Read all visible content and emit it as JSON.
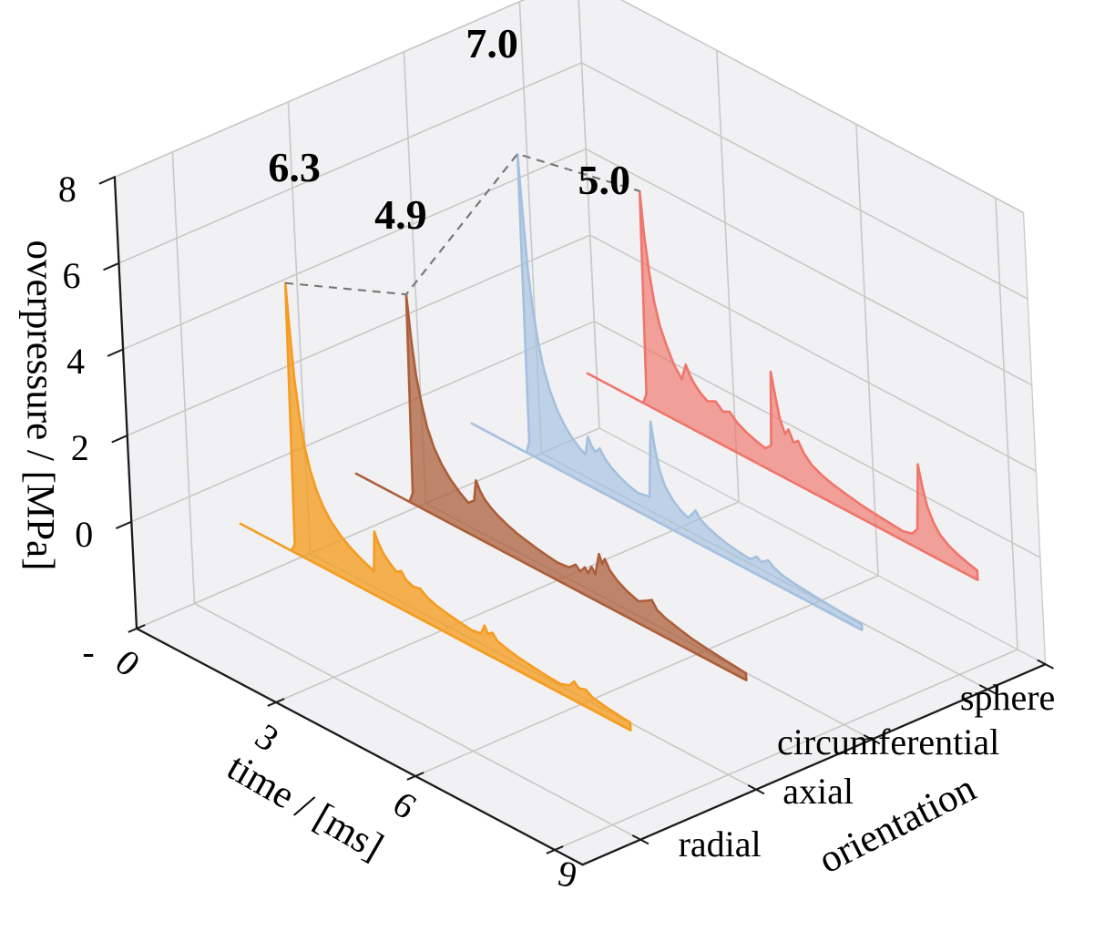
{
  "chart_data": {
    "type": "line",
    "variant": "3d-waterfall",
    "title": "",
    "xlabel": "time / [ms]",
    "ylabel": "orientation",
    "zlabel": "overpressure / [MPa]",
    "x_ticks": [
      "0",
      "3",
      "6",
      "9"
    ],
    "z_ticks": [
      "0",
      "2",
      "4",
      "6",
      "8"
    ],
    "z_bottom_label": "-",
    "xlim": [
      0,
      9.6
    ],
    "zlim": [
      -2.48,
      8
    ],
    "grid": true,
    "legend": "none",
    "categories": [
      "radial",
      "axial",
      "circumferential",
      "sphere"
    ],
    "annotations": [
      {
        "label": "6.3",
        "value": 6.3,
        "series": "radial"
      },
      {
        "label": "4.9",
        "value": 4.9,
        "series": "axial"
      },
      {
        "label": "7.0",
        "value": 7.0,
        "series": "circumferential"
      },
      {
        "label": "5.0",
        "value": 5.0,
        "series": "sphere"
      }
    ],
    "series": [
      {
        "name": "radial",
        "row": 0,
        "color": "#F59C20",
        "fill_opacity": 0.78,
        "peak": 6.3,
        "peak_time": 2.35,
        "points": [
          [
            1.1,
            0
          ],
          [
            2.2,
            0
          ],
          [
            2.28,
            0.2
          ],
          [
            2.35,
            6.3
          ],
          [
            2.4,
            5.1
          ],
          [
            2.45,
            4.1
          ],
          [
            2.52,
            3.3
          ],
          [
            2.6,
            2.65
          ],
          [
            2.7,
            2.15
          ],
          [
            2.82,
            1.75
          ],
          [
            2.95,
            1.45
          ],
          [
            3.1,
            1.2
          ],
          [
            3.3,
            0.98
          ],
          [
            3.5,
            0.82
          ],
          [
            3.7,
            0.7
          ],
          [
            3.9,
            0.6
          ],
          [
            4.0,
            0.55
          ],
          [
            4.05,
            1.5
          ],
          [
            4.12,
            1.3
          ],
          [
            4.22,
            1.1
          ],
          [
            4.35,
            0.95
          ],
          [
            4.5,
            0.82
          ],
          [
            4.6,
            0.9
          ],
          [
            4.7,
            0.75
          ],
          [
            4.85,
            0.68
          ],
          [
            5.0,
            0.72
          ],
          [
            5.15,
            0.6
          ],
          [
            5.35,
            0.52
          ],
          [
            5.6,
            0.46
          ],
          [
            5.85,
            0.42
          ],
          [
            6.1,
            0.38
          ],
          [
            6.3,
            0.42
          ],
          [
            6.38,
            0.65
          ],
          [
            6.45,
            0.5
          ],
          [
            6.55,
            0.58
          ],
          [
            6.65,
            0.45
          ],
          [
            6.85,
            0.38
          ],
          [
            7.1,
            0.32
          ],
          [
            7.4,
            0.28
          ],
          [
            7.7,
            0.24
          ],
          [
            8.0,
            0.22
          ],
          [
            8.2,
            0.3
          ],
          [
            8.3,
            0.45
          ],
          [
            8.4,
            0.35
          ],
          [
            8.55,
            0.4
          ],
          [
            8.7,
            0.3
          ],
          [
            9.0,
            0.24
          ],
          [
            9.3,
            0.2
          ],
          [
            9.5,
            0.18
          ]
        ]
      },
      {
        "name": "axial",
        "row": 1,
        "color": "#AC5E3A",
        "fill_opacity": 0.74,
        "peak": 4.9,
        "peak_time": 2.4,
        "points": [
          [
            1.1,
            0
          ],
          [
            2.25,
            0
          ],
          [
            2.33,
            0.25
          ],
          [
            2.4,
            4.9
          ],
          [
            2.46,
            3.9
          ],
          [
            2.53,
            3.1
          ],
          [
            2.62,
            2.5
          ],
          [
            2.72,
            2.0
          ],
          [
            2.85,
            1.6
          ],
          [
            3.0,
            1.3
          ],
          [
            3.18,
            1.05
          ],
          [
            3.38,
            0.85
          ],
          [
            3.55,
            0.72
          ],
          [
            3.68,
            0.85
          ],
          [
            3.74,
            1.35
          ],
          [
            3.82,
            1.15
          ],
          [
            3.92,
            1.0
          ],
          [
            4.05,
            0.88
          ],
          [
            4.2,
            0.78
          ],
          [
            4.4,
            0.68
          ],
          [
            4.6,
            0.6
          ],
          [
            4.8,
            0.55
          ],
          [
            5.0,
            0.5
          ],
          [
            5.2,
            0.46
          ],
          [
            5.45,
            0.42
          ],
          [
            5.7,
            0.45
          ],
          [
            5.85,
            0.6
          ],
          [
            5.95,
            0.5
          ],
          [
            6.05,
            0.65
          ],
          [
            6.12,
            0.55
          ],
          [
            6.2,
            0.75
          ],
          [
            6.28,
            0.62
          ],
          [
            6.38,
            1.15
          ],
          [
            6.44,
            0.95
          ],
          [
            6.5,
            1.1
          ],
          [
            6.6,
            0.9
          ],
          [
            6.75,
            0.75
          ],
          [
            6.95,
            0.62
          ],
          [
            7.2,
            0.52
          ],
          [
            7.4,
            0.65
          ],
          [
            7.5,
            0.72
          ],
          [
            7.6,
            0.55
          ],
          [
            7.8,
            0.45
          ],
          [
            8.05,
            0.38
          ],
          [
            8.35,
            0.3
          ],
          [
            8.7,
            0.25
          ],
          [
            9.1,
            0.2
          ],
          [
            9.5,
            0.16
          ]
        ]
      },
      {
        "name": "circumferential",
        "row": 2,
        "color": "#A5C0DE",
        "fill_opacity": 0.65,
        "peak": 7.0,
        "peak_time": 2.4,
        "points": [
          [
            1.1,
            0
          ],
          [
            2.28,
            0
          ],
          [
            2.35,
            0.3
          ],
          [
            2.4,
            7.0
          ],
          [
            2.45,
            5.6
          ],
          [
            2.5,
            4.4
          ],
          [
            2.57,
            3.5
          ],
          [
            2.65,
            2.8
          ],
          [
            2.75,
            2.2
          ],
          [
            2.87,
            1.75
          ],
          [
            3.0,
            1.4
          ],
          [
            3.15,
            1.12
          ],
          [
            3.3,
            0.92
          ],
          [
            3.45,
            0.78
          ],
          [
            3.58,
            0.7
          ],
          [
            3.65,
            1.15
          ],
          [
            3.72,
            0.98
          ],
          [
            3.8,
            0.88
          ],
          [
            3.9,
            1.02
          ],
          [
            4.0,
            0.85
          ],
          [
            4.12,
            0.72
          ],
          [
            4.3,
            0.6
          ],
          [
            4.5,
            0.5
          ],
          [
            4.7,
            0.44
          ],
          [
            4.95,
            0.5
          ],
          [
            5.05,
            2.3
          ],
          [
            5.12,
            1.7
          ],
          [
            5.2,
            1.25
          ],
          [
            5.3,
            0.95
          ],
          [
            5.45,
            0.72
          ],
          [
            5.6,
            0.58
          ],
          [
            5.78,
            0.48
          ],
          [
            5.95,
            0.75
          ],
          [
            6.05,
            0.6
          ],
          [
            6.2,
            0.5
          ],
          [
            6.4,
            0.42
          ],
          [
            6.6,
            0.36
          ],
          [
            6.85,
            0.31
          ],
          [
            7.1,
            0.28
          ],
          [
            7.25,
            0.42
          ],
          [
            7.35,
            0.35
          ],
          [
            7.5,
            0.48
          ],
          [
            7.62,
            0.38
          ],
          [
            7.8,
            0.3
          ],
          [
            8.1,
            0.25
          ],
          [
            8.5,
            0.21
          ],
          [
            9.0,
            0.17
          ],
          [
            9.5,
            0.14
          ]
        ]
      },
      {
        "name": "sphere",
        "row": 3,
        "color": "#F0756B",
        "fill_opacity": 0.66,
        "peak": 5.0,
        "peak_time": 2.45,
        "points": [
          [
            1.1,
            0
          ],
          [
            2.3,
            0
          ],
          [
            2.38,
            0.25
          ],
          [
            2.45,
            5.0
          ],
          [
            2.5,
            4.0
          ],
          [
            2.57,
            3.2
          ],
          [
            2.65,
            2.55
          ],
          [
            2.75,
            2.05
          ],
          [
            2.88,
            1.65
          ],
          [
            3.02,
            1.3
          ],
          [
            3.18,
            1.05
          ],
          [
            3.28,
            1.45
          ],
          [
            3.36,
            1.25
          ],
          [
            3.45,
            1.1
          ],
          [
            3.58,
            0.95
          ],
          [
            3.72,
            0.85
          ],
          [
            3.9,
            0.95
          ],
          [
            4.05,
            0.8
          ],
          [
            4.2,
            0.88
          ],
          [
            4.35,
            0.72
          ],
          [
            4.55,
            0.6
          ],
          [
            4.75,
            0.52
          ],
          [
            4.95,
            0.46
          ],
          [
            5.08,
            0.6
          ],
          [
            5.15,
            2.35
          ],
          [
            5.23,
            1.8
          ],
          [
            5.3,
            1.35
          ],
          [
            5.4,
            1.05
          ],
          [
            5.48,
            1.2
          ],
          [
            5.58,
            0.95
          ],
          [
            5.68,
            1.05
          ],
          [
            5.8,
            0.82
          ],
          [
            5.95,
            0.65
          ],
          [
            6.15,
            0.54
          ],
          [
            6.4,
            0.45
          ],
          [
            6.7,
            0.38
          ],
          [
            7.0,
            0.32
          ],
          [
            7.3,
            0.28
          ],
          [
            7.6,
            0.25
          ],
          [
            7.9,
            0.22
          ],
          [
            8.1,
            0.28
          ],
          [
            8.22,
            0.45
          ],
          [
            8.3,
            2.0
          ],
          [
            8.38,
            1.5
          ],
          [
            8.47,
            1.1
          ],
          [
            8.58,
            0.82
          ],
          [
            8.72,
            0.6
          ],
          [
            8.9,
            0.45
          ],
          [
            9.1,
            0.35
          ],
          [
            9.3,
            0.28
          ],
          [
            9.5,
            0.22
          ]
        ]
      }
    ]
  },
  "colors": {
    "background": "#ffffff",
    "pane": "#F1F1F3",
    "pane_edge": "#CCCCCC",
    "grid": "#C8C8C8",
    "spine": "#1B1B1B",
    "dashed_line": "#787878",
    "text": "#000000"
  }
}
